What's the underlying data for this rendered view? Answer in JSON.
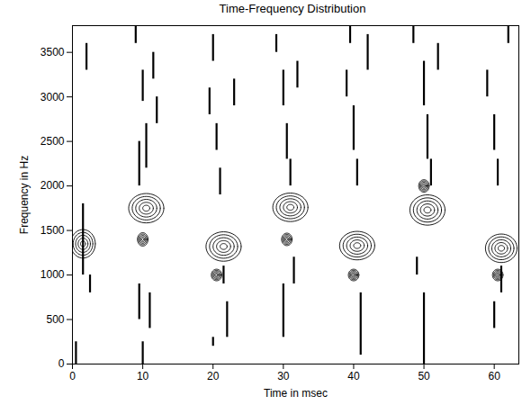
{
  "chart_data": {
    "type": "contour",
    "title": "Time-Frequency Distribution",
    "x_label": "Time in msec",
    "y_label": "Frequency in Hz",
    "xlim": [
      0,
      63.5
    ],
    "ylim": [
      0,
      3800
    ],
    "xticks": [
      0,
      10,
      20,
      30,
      40,
      50,
      60
    ],
    "yticks": [
      0,
      500,
      1000,
      1500,
      2000,
      2500,
      3000,
      3500
    ],
    "color": "#000000",
    "grid": false,
    "blobs": [
      {
        "time": 1.5,
        "frequency": 1350,
        "time_width": 3.5,
        "frequency_height": 320
      },
      {
        "time": 10.5,
        "frequency": 1750,
        "time_width": 5,
        "frequency_height": 330
      },
      {
        "time": 21.5,
        "frequency": 1320,
        "time_width": 5,
        "frequency_height": 330
      },
      {
        "time": 31,
        "frequency": 1760,
        "time_width": 5,
        "frequency_height": 320
      },
      {
        "time": 40.5,
        "frequency": 1330,
        "time_width": 5,
        "frequency_height": 320
      },
      {
        "time": 50.5,
        "frequency": 1730,
        "time_width": 5,
        "frequency_height": 340
      },
      {
        "time": 61,
        "frequency": 1300,
        "time_width": 4.5,
        "frequency_height": 320
      },
      {
        "time": 10,
        "frequency": 1400,
        "time_width": 1.5,
        "frequency_height": 150
      },
      {
        "time": 20.5,
        "frequency": 1000,
        "time_width": 1.5,
        "frequency_height": 130
      },
      {
        "time": 30.5,
        "frequency": 1400,
        "time_width": 1.5,
        "frequency_height": 140
      },
      {
        "time": 40,
        "frequency": 1000,
        "time_width": 1.5,
        "frequency_height": 130
      },
      {
        "time": 50,
        "frequency": 2000,
        "time_width": 1.5,
        "frequency_height": 140
      },
      {
        "time": 60.5,
        "frequency": 1000,
        "time_width": 1.5,
        "frequency_height": 130
      }
    ],
    "streaks": [
      {
        "time": 0.5,
        "from": 0,
        "to": 250
      },
      {
        "time": 1.5,
        "from": 1000,
        "to": 1800
      },
      {
        "time": 2,
        "from": 3300,
        "to": 3600
      },
      {
        "time": 2.5,
        "from": 800,
        "to": 1000
      },
      {
        "time": 9,
        "from": 3600,
        "to": 3800
      },
      {
        "time": 10,
        "from": 2950,
        "to": 3300
      },
      {
        "time": 10.5,
        "from": 2200,
        "to": 2700
      },
      {
        "time": 9.5,
        "from": 2000,
        "to": 2500
      },
      {
        "time": 11,
        "from": 400,
        "to": 800
      },
      {
        "time": 10,
        "from": 0,
        "to": 250
      },
      {
        "time": 11.5,
        "from": 3200,
        "to": 3500
      },
      {
        "time": 12,
        "from": 2700,
        "to": 3000
      },
      {
        "time": 9.5,
        "from": 500,
        "to": 900
      },
      {
        "time": 20,
        "from": 3400,
        "to": 3700
      },
      {
        "time": 19.5,
        "from": 2800,
        "to": 3100
      },
      {
        "time": 20.5,
        "from": 2400,
        "to": 2700
      },
      {
        "time": 21,
        "from": 1900,
        "to": 2200
      },
      {
        "time": 22,
        "from": 300,
        "to": 700
      },
      {
        "time": 20,
        "from": 200,
        "to": 300
      },
      {
        "time": 21.5,
        "from": 900,
        "to": 1100
      },
      {
        "time": 23,
        "from": 2900,
        "to": 3200
      },
      {
        "time": 29,
        "from": 3500,
        "to": 3700
      },
      {
        "time": 30,
        "from": 2900,
        "to": 3300
      },
      {
        "time": 30.5,
        "from": 2300,
        "to": 2700
      },
      {
        "time": 31,
        "from": 2000,
        "to": 2300
      },
      {
        "time": 30,
        "from": 300,
        "to": 900
      },
      {
        "time": 32,
        "from": 3100,
        "to": 3400
      },
      {
        "time": 31.5,
        "from": 900,
        "to": 1200
      },
      {
        "time": 39.5,
        "from": 3600,
        "to": 3800
      },
      {
        "time": 40,
        "from": 2400,
        "to": 2900
      },
      {
        "time": 40.5,
        "from": 2000,
        "to": 2300
      },
      {
        "time": 39,
        "from": 3000,
        "to": 3300
      },
      {
        "time": 41,
        "from": 100,
        "to": 800
      },
      {
        "time": 42,
        "from": 3300,
        "to": 3700
      },
      {
        "time": 48.5,
        "from": 3600,
        "to": 3800
      },
      {
        "time": 50,
        "from": 2900,
        "to": 3400
      },
      {
        "time": 50.5,
        "from": 2300,
        "to": 2800
      },
      {
        "time": 51,
        "from": 2000,
        "to": 2300
      },
      {
        "time": 50,
        "from": 0,
        "to": 800
      },
      {
        "time": 52,
        "from": 3300,
        "to": 3600
      },
      {
        "time": 49,
        "from": 1000,
        "to": 1200
      },
      {
        "time": 59,
        "from": 3000,
        "to": 3300
      },
      {
        "time": 60,
        "from": 2400,
        "to": 2800
      },
      {
        "time": 60.5,
        "from": 2000,
        "to": 2300
      },
      {
        "time": 61,
        "from": 800,
        "to": 1100
      },
      {
        "time": 62,
        "from": 3600,
        "to": 3800
      },
      {
        "time": 60,
        "from": 400,
        "to": 700
      }
    ]
  }
}
